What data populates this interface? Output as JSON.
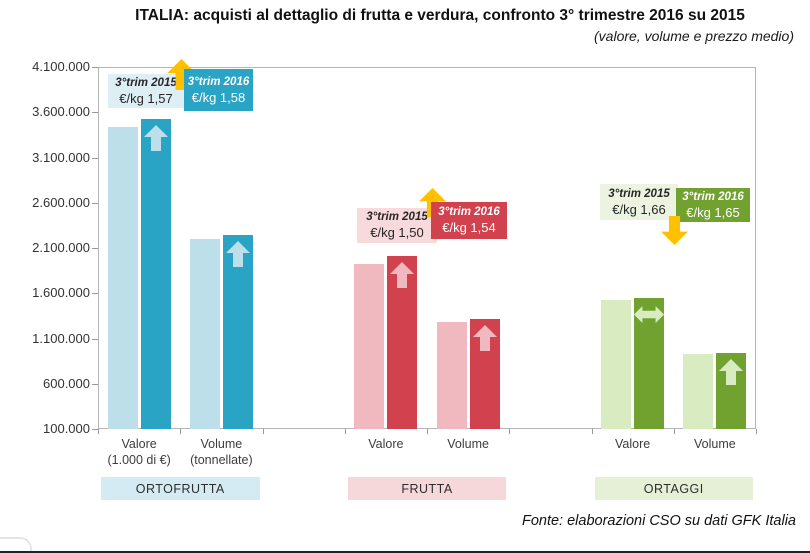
{
  "header": {
    "title": "ITALIA: acquisti al dettaglio di frutta e verdura, confronto 3° trimestre 2016 su 2015",
    "subtitle": "(valore, volume e prezzo medio)"
  },
  "footer": {
    "source": "Fonte: elaborazioni CSO su dati GFK Italia"
  },
  "chart_data": {
    "type": "bar",
    "title": "ITALIA: acquisti al dettaglio di frutta e verdura, confronto 3° trimestre 2016 su 2015",
    "subtitle": "(valore, volume e prezzo medio)",
    "source": "Fonte: elaborazioni CSO su dati GFK Italia",
    "y_axis": {
      "min": 100000,
      "max": 4100000,
      "step": 500000,
      "tick_labels": [
        "4.100.000",
        "3.600.000",
        "3.100.000",
        "2.600.000",
        "2.100.000",
        "1.600.000",
        "1.100.000",
        "600.000",
        "100.000"
      ]
    },
    "series_labels": [
      "3°trim 2015",
      "3°trim 2016"
    ],
    "accent_yellow": "#ffc000",
    "groups": [
      {
        "name": "ORTOFRUTTA",
        "colors": {
          "bar_2015": "#bcdfea",
          "bar_2016": "#2aa4c5",
          "callout_2015_bg": "#ddeef5",
          "band_bg": "#d5ebf3"
        },
        "price_2015": "€/kg 1,57",
        "price_2016": "€/kg 1,58",
        "price_trend": "up",
        "bars": [
          {
            "category": "Valore",
            "category_sub": "(1.000 di €)",
            "value_2015": 3440000,
            "value_2016": 3530000,
            "trend": "up"
          },
          {
            "category": "Volume",
            "category_sub": "(tonnellate)",
            "value_2015": 2200000,
            "value_2016": 2240000,
            "trend": "up"
          }
        ]
      },
      {
        "name": "FRUTTA",
        "colors": {
          "bar_2015": "#f0b9bf",
          "bar_2016": "#d2414e",
          "callout_2015_bg": "#f8dadd",
          "band_bg": "#f6d7da"
        },
        "price_2015": "€/kg 1,50",
        "price_2016": "€/kg 1,54",
        "price_trend": "up",
        "bars": [
          {
            "category": "Valore",
            "category_sub": "",
            "value_2015": 1925000,
            "value_2016": 2015000,
            "trend": "up"
          },
          {
            "category": "Volume",
            "category_sub": "",
            "value_2015": 1285000,
            "value_2016": 1310000,
            "trend": "up"
          }
        ]
      },
      {
        "name": "ORTAGGI",
        "colors": {
          "bar_2015": "#d9ecc1",
          "bar_2016": "#71a230",
          "callout_2015_bg": "#ecf4e1",
          "band_bg": "#e5f0d7"
        },
        "price_2015": "€/kg 1,66",
        "price_2016": "€/kg 1,65",
        "price_trend": "down",
        "bars": [
          {
            "category": "Valore",
            "category_sub": "",
            "value_2015": 1530000,
            "value_2016": 1545000,
            "trend": "flat"
          },
          {
            "category": "Volume",
            "category_sub": "",
            "value_2015": 930000,
            "value_2016": 940000,
            "trend": "up"
          }
        ]
      }
    ]
  }
}
